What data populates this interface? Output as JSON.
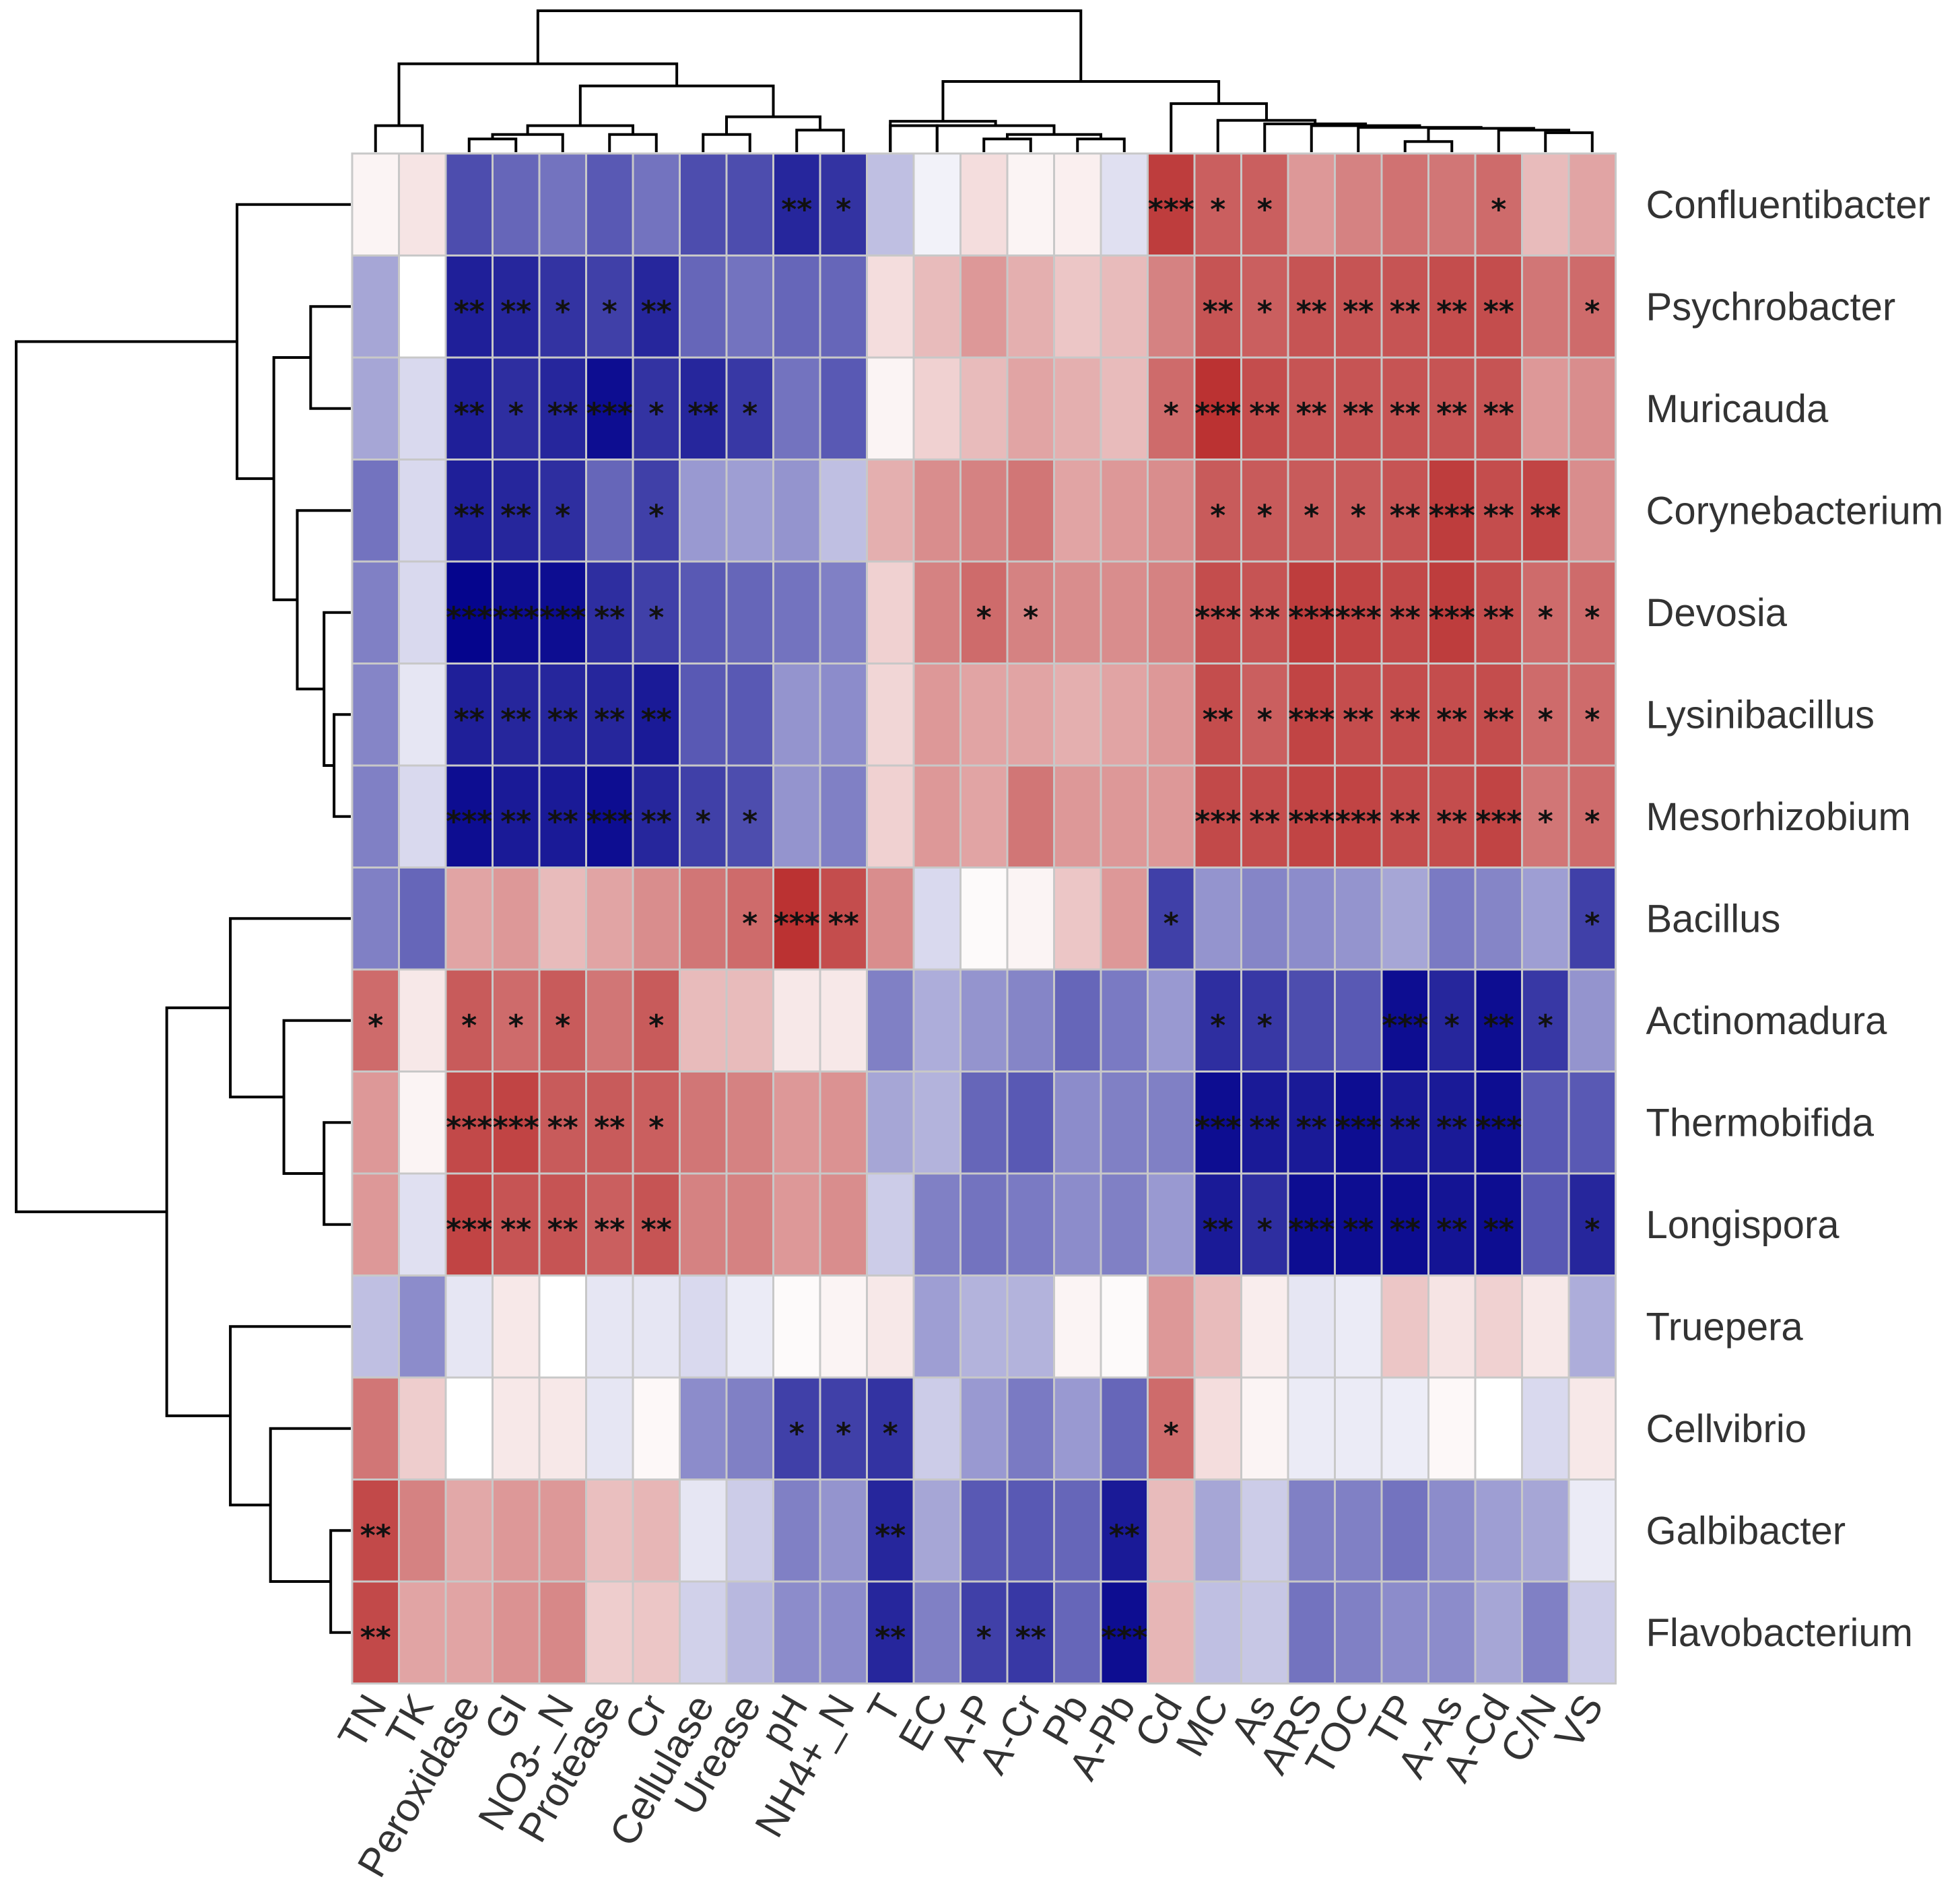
{
  "chart_data": {
    "type": "heatmap",
    "title": "",
    "subtitle": "",
    "color_scale": {
      "low": "#00008b",
      "mid": "#ffffff",
      "high": "#b31b1b",
      "range": [
        -1,
        1
      ]
    },
    "columns": [
      "TN",
      "TK",
      "Peroxidase",
      "GI",
      "NO3-_N",
      "Protease",
      "Cr",
      "Cellulase",
      "Urease",
      "pH",
      "NH4+_N",
      "T",
      "EC",
      "A-P",
      "A-Cr",
      "Pb",
      "A-Pb",
      "Cd",
      "MC",
      "As",
      "ARS",
      "TOC",
      "TP",
      "A-As",
      "A-Cd",
      "C/N",
      "VS"
    ],
    "rows": [
      "Confluentibacter",
      "Psychrobacter",
      "Muricauda",
      "Corynebacterium",
      "Devosia",
      "Lysinibacillus",
      "Mesorhizobium",
      "Bacillus",
      "Actinomadura",
      "Thermobifida",
      "Longispora",
      "Truepera",
      "Cellvibrio",
      "Galbibacter",
      "Flavobacterium"
    ],
    "values": [
      [
        0.05,
        0.12,
        -0.7,
        -0.6,
        -0.55,
        -0.65,
        -0.55,
        -0.7,
        -0.7,
        -0.85,
        -0.8,
        -0.25,
        -0.05,
        0.15,
        0.05,
        0.07,
        -0.12,
        0.85,
        0.7,
        0.7,
        0.45,
        0.55,
        0.62,
        0.6,
        0.65,
        0.3,
        0.4
      ],
      [
        -0.35,
        0.0,
        -0.88,
        -0.85,
        -0.8,
        -0.75,
        -0.85,
        -0.6,
        -0.55,
        -0.6,
        -0.6,
        0.15,
        0.3,
        0.45,
        0.35,
        0.25,
        0.3,
        0.55,
        0.75,
        0.7,
        0.75,
        0.75,
        0.75,
        0.78,
        0.78,
        0.6,
        0.65
      ],
      [
        -0.35,
        -0.15,
        -0.88,
        -0.82,
        -0.85,
        -0.95,
        -0.8,
        -0.85,
        -0.78,
        -0.55,
        -0.65,
        0.05,
        0.2,
        0.3,
        0.4,
        0.35,
        0.3,
        0.65,
        0.9,
        0.78,
        0.75,
        0.75,
        0.75,
        0.75,
        0.75,
        0.45,
        0.5
      ],
      [
        -0.55,
        -0.15,
        -0.88,
        -0.85,
        -0.82,
        -0.6,
        -0.75,
        -0.4,
        -0.38,
        -0.42,
        -0.25,
        0.35,
        0.5,
        0.55,
        0.6,
        0.4,
        0.45,
        0.5,
        0.72,
        0.72,
        0.72,
        0.72,
        0.75,
        0.85,
        0.78,
        0.82,
        0.5
      ],
      [
        -0.5,
        -0.15,
        -0.98,
        -0.95,
        -0.95,
        -0.82,
        -0.75,
        -0.65,
        -0.6,
        -0.55,
        -0.5,
        0.2,
        0.55,
        0.65,
        0.55,
        0.5,
        0.5,
        0.55,
        0.78,
        0.75,
        0.85,
        0.82,
        0.8,
        0.85,
        0.78,
        0.65,
        0.65
      ],
      [
        -0.48,
        -0.1,
        -0.88,
        -0.85,
        -0.85,
        -0.85,
        -0.9,
        -0.65,
        -0.65,
        -0.42,
        -0.45,
        0.18,
        0.45,
        0.4,
        0.4,
        0.35,
        0.4,
        0.45,
        0.78,
        0.7,
        0.82,
        0.78,
        0.78,
        0.78,
        0.78,
        0.65,
        0.65
      ],
      [
        -0.5,
        -0.15,
        -0.95,
        -0.9,
        -0.9,
        -0.95,
        -0.85,
        -0.75,
        -0.7,
        -0.42,
        -0.5,
        0.2,
        0.45,
        0.4,
        0.6,
        0.45,
        0.45,
        0.45,
        0.8,
        0.78,
        0.82,
        0.82,
        0.78,
        0.78,
        0.82,
        0.6,
        0.65
      ],
      [
        -0.5,
        -0.6,
        0.4,
        0.45,
        0.3,
        0.4,
        0.5,
        0.6,
        0.65,
        0.9,
        0.78,
        0.5,
        -0.15,
        0.02,
        0.05,
        0.25,
        0.45,
        -0.75,
        -0.42,
        -0.48,
        -0.45,
        -0.42,
        -0.35,
        -0.52,
        -0.48,
        -0.38,
        -0.75
      ],
      [
        0.65,
        0.1,
        0.72,
        0.65,
        0.72,
        0.6,
        0.72,
        0.3,
        0.3,
        0.1,
        0.1,
        -0.5,
        -0.32,
        -0.42,
        -0.48,
        -0.6,
        -0.52,
        -0.4,
        -0.82,
        -0.78,
        -0.7,
        -0.65,
        -0.95,
        -0.85,
        -0.95,
        -0.78,
        -0.42
      ],
      [
        0.45,
        0.05,
        0.8,
        0.82,
        0.72,
        0.72,
        0.7,
        0.6,
        0.55,
        0.45,
        0.48,
        -0.35,
        -0.3,
        -0.6,
        -0.65,
        -0.45,
        -0.5,
        -0.5,
        -0.95,
        -0.9,
        -0.9,
        -0.95,
        -0.9,
        -0.9,
        -0.95,
        -0.65,
        -0.65
      ],
      [
        0.45,
        -0.12,
        0.82,
        0.75,
        0.75,
        0.7,
        0.75,
        0.55,
        0.55,
        0.45,
        0.5,
        -0.2,
        -0.5,
        -0.55,
        -0.52,
        -0.45,
        -0.5,
        -0.4,
        -0.9,
        -0.82,
        -0.95,
        -0.95,
        -0.95,
        -0.92,
        -0.95,
        -0.65,
        -0.85
      ],
      [
        -0.25,
        -0.45,
        -0.1,
        0.1,
        0.0,
        -0.1,
        -0.1,
        -0.15,
        -0.08,
        0.02,
        0.05,
        0.1,
        -0.38,
        -0.3,
        -0.3,
        0.05,
        0.02,
        0.45,
        0.3,
        0.08,
        -0.1,
        -0.08,
        0.25,
        0.12,
        0.2,
        0.1,
        -0.32
      ],
      [
        0.6,
        0.22,
        0.0,
        0.1,
        0.1,
        -0.1,
        0.03,
        -0.45,
        -0.5,
        -0.75,
        -0.75,
        -0.8,
        -0.2,
        -0.4,
        -0.52,
        -0.4,
        -0.6,
        0.65,
        0.15,
        0.05,
        -0.08,
        -0.08,
        -0.07,
        0.03,
        0.0,
        -0.15,
        0.1
      ],
      [
        0.8,
        0.55,
        0.38,
        0.45,
        0.45,
        0.28,
        0.32,
        -0.1,
        -0.2,
        -0.5,
        -0.42,
        -0.85,
        -0.35,
        -0.65,
        -0.65,
        -0.6,
        -0.9,
        0.3,
        -0.35,
        -0.2,
        -0.5,
        -0.5,
        -0.55,
        -0.45,
        -0.38,
        -0.35,
        -0.08
      ],
      [
        0.8,
        0.4,
        0.4,
        0.48,
        0.52,
        0.22,
        0.25,
        -0.18,
        -0.28,
        -0.45,
        -0.45,
        -0.85,
        -0.5,
        -0.75,
        -0.78,
        -0.6,
        -0.95,
        0.32,
        -0.25,
        -0.22,
        -0.55,
        -0.5,
        -0.45,
        -0.45,
        -0.35,
        -0.5,
        -0.2
      ]
    ],
    "significance": [
      [
        "",
        "",
        "",
        "",
        "",
        "",
        "",
        "",
        "",
        "**",
        "*",
        "",
        "",
        "",
        "",
        "",
        "",
        "***",
        "*",
        "*",
        "",
        "",
        "",
        "",
        "*",
        "",
        ""
      ],
      [
        "",
        "",
        "**",
        "**",
        "*",
        "*",
        "**",
        "",
        "",
        "",
        "",
        "",
        "",
        "",
        "",
        "",
        "",
        "",
        "**",
        "*",
        "**",
        "**",
        "**",
        "**",
        "**",
        "",
        "*"
      ],
      [
        "",
        "",
        "**",
        "*",
        "**",
        "***",
        "*",
        "**",
        "*",
        "",
        "",
        "",
        "",
        "",
        "",
        "",
        "",
        "*",
        "***",
        "**",
        "**",
        "**",
        "**",
        "**",
        "**",
        "",
        ""
      ],
      [
        "",
        "",
        "**",
        "**",
        "*",
        "",
        "*",
        "",
        "",
        "",
        "",
        "",
        "",
        "",
        "",
        "",
        "",
        "",
        "*",
        "*",
        "*",
        "*",
        "**",
        "***",
        "**",
        "**",
        ""
      ],
      [
        "",
        "",
        "***",
        "***",
        "***",
        "**",
        "*",
        "",
        "",
        "",
        "",
        "",
        "",
        "*",
        "*",
        "",
        "",
        "",
        "***",
        "**",
        "***",
        "***",
        "**",
        "***",
        "**",
        "*",
        "*"
      ],
      [
        "",
        "",
        "**",
        "**",
        "**",
        "**",
        "**",
        "",
        "",
        "",
        "",
        "",
        "",
        "",
        "",
        "",
        "",
        "",
        "**",
        "*",
        "***",
        "**",
        "**",
        "**",
        "**",
        "*",
        "*"
      ],
      [
        "",
        "",
        "***",
        "**",
        "**",
        "***",
        "**",
        "*",
        "*",
        "",
        "",
        "",
        "",
        "",
        "",
        "",
        "",
        "",
        "***",
        "**",
        "***",
        "***",
        "**",
        "**",
        "***",
        "*",
        "*"
      ],
      [
        "",
        "",
        "",
        "",
        "",
        "",
        "",
        "",
        "*",
        "***",
        "**",
        "",
        "",
        "",
        "",
        "",
        "",
        "*",
        "",
        "",
        "",
        "",
        "",
        "",
        "",
        "",
        "*"
      ],
      [
        "*",
        "",
        "*",
        "*",
        "*",
        "",
        "*",
        "",
        "",
        "",
        "",
        "",
        "",
        "",
        "",
        "",
        "",
        "",
        "*",
        "*",
        "",
        "",
        "***",
        "*",
        "**",
        "*",
        ""
      ],
      [
        "",
        "",
        "***",
        "***",
        "**",
        "**",
        "*",
        "",
        "",
        "",
        "",
        "",
        "",
        "",
        "",
        "",
        "",
        "",
        "***",
        "**",
        "**",
        "***",
        "**",
        "**",
        "***",
        "",
        ""
      ],
      [
        "",
        "",
        "***",
        "**",
        "**",
        "**",
        "**",
        "",
        "",
        "",
        "",
        "",
        "",
        "",
        "",
        "",
        "",
        "",
        "**",
        "*",
        "***",
        "**",
        "**",
        "**",
        "**",
        "",
        "*"
      ],
      [
        "",
        "",
        "",
        "",
        "",
        "",
        "",
        "",
        "",
        "",
        "",
        "",
        "",
        "",
        "",
        "",
        "",
        "",
        "",
        "",
        "",
        "",
        "",
        "",
        "",
        "",
        ""
      ],
      [
        "",
        "",
        "",
        "",
        "",
        "",
        "",
        "",
        "",
        "*",
        "*",
        "*",
        "",
        "",
        "",
        "",
        "",
        "*",
        "",
        "",
        "",
        "",
        "",
        "",
        "",
        "",
        ""
      ],
      [
        "**",
        "",
        "",
        "",
        "",
        "",
        "",
        "",
        "",
        "",
        "",
        "**",
        "",
        "",
        "",
        "",
        "**",
        "",
        "",
        "",
        "",
        "",
        "",
        "",
        "",
        "",
        ""
      ],
      [
        "**",
        "",
        "",
        "",
        "",
        "",
        "",
        "",
        "",
        "",
        "",
        "**",
        "",
        "*",
        "**",
        "",
        "***",
        "",
        "",
        "",
        "",
        "",
        "",
        "",
        "",
        "",
        ""
      ]
    ],
    "col_dendrogram": {
      "nodes": [
        {
          "id": 27,
          "l": 0,
          "r": 1,
          "h": 0.3
        },
        {
          "id": 28,
          "l": 2,
          "r": 3,
          "h": 0.15
        },
        {
          "id": 29,
          "l": 28,
          "r": 4,
          "h": 0.2
        },
        {
          "id": 30,
          "l": 5,
          "r": 6,
          "h": 0.2
        },
        {
          "id": 31,
          "l": 29,
          "r": 30,
          "h": 0.3
        },
        {
          "id": 32,
          "l": 7,
          "r": 8,
          "h": 0.2
        },
        {
          "id": 33,
          "l": 9,
          "r": 10,
          "h": 0.25
        },
        {
          "id": 34,
          "l": 32,
          "r": 33,
          "h": 0.4
        },
        {
          "id": 35,
          "l": 31,
          "r": 34,
          "h": 0.75
        },
        {
          "id": 36,
          "l": 27,
          "r": 35,
          "h": 1.0
        },
        {
          "id": 37,
          "l": 11,
          "r": 12,
          "h": 0.3
        },
        {
          "id": 38,
          "l": 13,
          "r": 14,
          "h": 0.15
        },
        {
          "id": 39,
          "l": 15,
          "r": 16,
          "h": 0.15
        },
        {
          "id": 40,
          "l": 38,
          "r": 39,
          "h": 0.2
        },
        {
          "id": 41,
          "l": 12,
          "r": 40,
          "h": 0.3
        },
        {
          "id": 42,
          "l": 11,
          "r": 41,
          "h": 0.35
        },
        {
          "id": 43,
          "l": 25,
          "r": 26,
          "h": 0.22
        },
        {
          "id": 44,
          "l": 24,
          "r": 43,
          "h": 0.25
        },
        {
          "id": 45,
          "l": 22,
          "r": 23,
          "h": 0.12
        },
        {
          "id": 46,
          "l": 45,
          "r": 44,
          "h": 0.27
        },
        {
          "id": 47,
          "l": 21,
          "r": 46,
          "h": 0.28
        },
        {
          "id": 48,
          "l": 20,
          "r": 47,
          "h": 0.3
        },
        {
          "id": 49,
          "l": 19,
          "r": 48,
          "h": 0.32
        },
        {
          "id": 50,
          "l": 18,
          "r": 49,
          "h": 0.36
        },
        {
          "id": 51,
          "l": 17,
          "r": 50,
          "h": 0.55
        },
        {
          "id": 52,
          "l": 42,
          "r": 51,
          "h": 0.8
        },
        {
          "id": 53,
          "l": 36,
          "r": 52,
          "h": 1.6
        }
      ]
    },
    "row_dendrogram": {
      "nodes": [
        {
          "id": 15,
          "l": 1,
          "r": 2,
          "h": 0.12
        },
        {
          "id": 16,
          "l": 5,
          "r": 6,
          "h": 0.05
        },
        {
          "id": 17,
          "l": 4,
          "r": 16,
          "h": 0.08
        },
        {
          "id": 18,
          "l": 3,
          "r": 17,
          "h": 0.16
        },
        {
          "id": 19,
          "l": 15,
          "r": 18,
          "h": 0.23
        },
        {
          "id": 20,
          "l": 0,
          "r": 19,
          "h": 0.34
        },
        {
          "id": 21,
          "l": 9,
          "r": 10,
          "h": 0.08
        },
        {
          "id": 22,
          "l": 8,
          "r": 21,
          "h": 0.2
        },
        {
          "id": 23,
          "l": 7,
          "r": 22,
          "h": 0.36
        },
        {
          "id": 24,
          "l": 13,
          "r": 14,
          "h": 0.06
        },
        {
          "id": 25,
          "l": 12,
          "r": 24,
          "h": 0.24
        },
        {
          "id": 26,
          "l": 11,
          "r": 25,
          "h": 0.36
        },
        {
          "id": 27,
          "l": 23,
          "r": 26,
          "h": 0.55
        },
        {
          "id": 28,
          "l": 20,
          "r": 27,
          "h": 1.0
        }
      ]
    }
  }
}
